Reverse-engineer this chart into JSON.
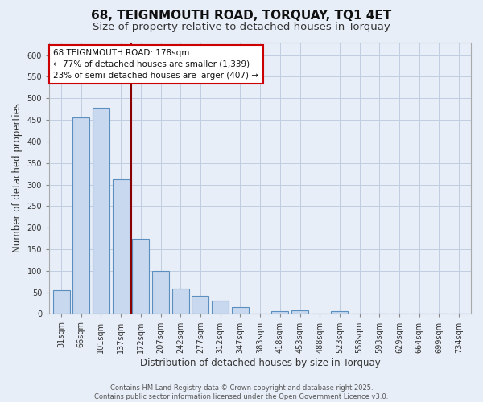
{
  "title": "68, TEIGNMOUTH ROAD, TORQUAY, TQ1 4ET",
  "subtitle": "Size of property relative to detached houses in Torquay",
  "xlabel": "Distribution of detached houses by size in Torquay",
  "ylabel": "Number of detached properties",
  "bin_labels": [
    "31sqm",
    "66sqm",
    "101sqm",
    "137sqm",
    "172sqm",
    "207sqm",
    "242sqm",
    "277sqm",
    "312sqm",
    "347sqm",
    "383sqm",
    "418sqm",
    "453sqm",
    "488sqm",
    "523sqm",
    "558sqm",
    "593sqm",
    "629sqm",
    "664sqm",
    "699sqm",
    "734sqm"
  ],
  "bar_values": [
    55,
    455,
    478,
    312,
    175,
    100,
    58,
    42,
    30,
    15,
    0,
    7,
    8,
    0,
    6,
    0,
    0,
    0,
    0,
    0,
    0
  ],
  "bar_color": "#c8d8ee",
  "bar_edge_color": "#5a8fc0",
  "vline_index": 3.5,
  "vline_color": "#8b0000",
  "annotation_text_line1": "68 TEIGNMOUTH ROAD: 178sqm",
  "annotation_text_line2": "← 77% of detached houses are smaller (1,339)",
  "annotation_text_line3": "23% of semi-detached houses are larger (407) →",
  "ylim": [
    0,
    630
  ],
  "yticks": [
    0,
    50,
    100,
    150,
    200,
    250,
    300,
    350,
    400,
    450,
    500,
    550,
    600
  ],
  "background_color": "#e8eef8",
  "plot_bg_color": "#e8eef8",
  "grid_color": "#c0cce0",
  "footer_line1": "Contains HM Land Registry data © Crown copyright and database right 2025.",
  "footer_line2": "Contains public sector information licensed under the Open Government Licence v3.0.",
  "title_fontsize": 11,
  "subtitle_fontsize": 9.5,
  "xlabel_fontsize": 8.5,
  "ylabel_fontsize": 8.5,
  "tick_fontsize": 7,
  "annotation_fontsize": 7.5,
  "footer_fontsize": 6
}
